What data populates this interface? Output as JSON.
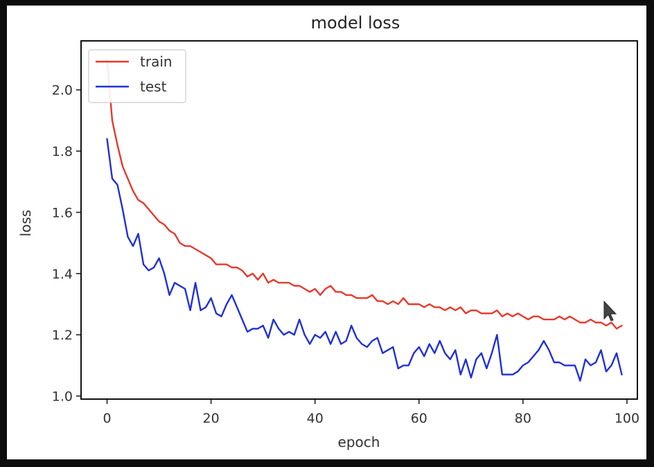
{
  "chart_data": {
    "type": "line",
    "title": "model loss",
    "xlabel": "epoch",
    "ylabel": "loss",
    "xlim": [
      -5,
      102
    ],
    "ylim": [
      0.99,
      2.16
    ],
    "xticks": [
      0,
      20,
      40,
      60,
      80,
      100
    ],
    "xtick_labels": [
      "0",
      "20",
      "40",
      "60",
      "80",
      "100"
    ],
    "yticks": [
      1.0,
      1.2,
      1.4,
      1.6,
      1.8,
      2.0
    ],
    "ytick_labels": [
      "1.0",
      "1.2",
      "1.4",
      "1.6",
      "1.8",
      "2.0"
    ],
    "grid": false,
    "legend": "top-left",
    "series": [
      {
        "name": "train",
        "color": "#e8382b",
        "x": [
          0,
          1,
          2,
          3,
          4,
          5,
          6,
          7,
          8,
          9,
          10,
          11,
          12,
          13,
          14,
          15,
          16,
          17,
          18,
          19,
          20,
          21,
          22,
          23,
          24,
          25,
          26,
          27,
          28,
          29,
          30,
          31,
          32,
          33,
          34,
          35,
          36,
          37,
          38,
          39,
          40,
          41,
          42,
          43,
          44,
          45,
          46,
          47,
          48,
          49,
          50,
          51,
          52,
          53,
          54,
          55,
          56,
          57,
          58,
          59,
          60,
          61,
          62,
          63,
          64,
          65,
          66,
          67,
          68,
          69,
          70,
          71,
          72,
          73,
          74,
          75,
          76,
          77,
          78,
          79,
          80,
          81,
          82,
          83,
          84,
          85,
          86,
          87,
          88,
          89,
          90,
          91,
          92,
          93,
          94,
          95,
          96,
          97,
          98,
          99
        ],
        "y": [
          2.1,
          1.9,
          1.82,
          1.75,
          1.71,
          1.67,
          1.64,
          1.63,
          1.61,
          1.59,
          1.57,
          1.56,
          1.54,
          1.53,
          1.5,
          1.49,
          1.49,
          1.48,
          1.47,
          1.46,
          1.45,
          1.43,
          1.43,
          1.43,
          1.42,
          1.42,
          1.41,
          1.39,
          1.4,
          1.38,
          1.4,
          1.37,
          1.38,
          1.37,
          1.37,
          1.37,
          1.36,
          1.36,
          1.35,
          1.34,
          1.35,
          1.33,
          1.35,
          1.36,
          1.34,
          1.34,
          1.33,
          1.33,
          1.32,
          1.32,
          1.32,
          1.33,
          1.31,
          1.31,
          1.3,
          1.31,
          1.3,
          1.32,
          1.3,
          1.3,
          1.3,
          1.29,
          1.3,
          1.29,
          1.29,
          1.28,
          1.29,
          1.28,
          1.29,
          1.27,
          1.28,
          1.28,
          1.27,
          1.27,
          1.27,
          1.28,
          1.26,
          1.27,
          1.26,
          1.27,
          1.26,
          1.25,
          1.26,
          1.26,
          1.25,
          1.25,
          1.25,
          1.26,
          1.25,
          1.26,
          1.25,
          1.24,
          1.24,
          1.25,
          1.24,
          1.24,
          1.23,
          1.24,
          1.22,
          1.23
        ]
      },
      {
        "name": "test",
        "color": "#1f2fd8",
        "x": [
          0,
          1,
          2,
          3,
          4,
          5,
          6,
          7,
          8,
          9,
          10,
          11,
          12,
          13,
          14,
          15,
          16,
          17,
          18,
          19,
          20,
          21,
          22,
          23,
          24,
          25,
          26,
          27,
          28,
          29,
          30,
          31,
          32,
          33,
          34,
          35,
          36,
          37,
          38,
          39,
          40,
          41,
          42,
          43,
          44,
          45,
          46,
          47,
          48,
          49,
          50,
          51,
          52,
          53,
          54,
          55,
          56,
          57,
          58,
          59,
          60,
          61,
          62,
          63,
          64,
          65,
          66,
          67,
          68,
          69,
          70,
          71,
          72,
          73,
          74,
          75,
          76,
          77,
          78,
          79,
          80,
          81,
          82,
          83,
          84,
          85,
          86,
          87,
          88,
          89,
          90,
          91,
          92,
          93,
          94,
          95,
          96,
          97,
          98,
          99
        ],
        "y": [
          1.84,
          1.71,
          1.69,
          1.61,
          1.52,
          1.49,
          1.53,
          1.43,
          1.41,
          1.42,
          1.45,
          1.4,
          1.33,
          1.37,
          1.36,
          1.35,
          1.28,
          1.37,
          1.28,
          1.29,
          1.32,
          1.27,
          1.26,
          1.3,
          1.33,
          1.29,
          1.25,
          1.21,
          1.22,
          1.22,
          1.23,
          1.19,
          1.25,
          1.22,
          1.2,
          1.21,
          1.2,
          1.25,
          1.2,
          1.17,
          1.2,
          1.19,
          1.21,
          1.17,
          1.21,
          1.17,
          1.18,
          1.23,
          1.19,
          1.17,
          1.16,
          1.18,
          1.19,
          1.14,
          1.15,
          1.16,
          1.09,
          1.1,
          1.1,
          1.14,
          1.16,
          1.13,
          1.17,
          1.14,
          1.18,
          1.14,
          1.12,
          1.15,
          1.07,
          1.12,
          1.06,
          1.12,
          1.14,
          1.09,
          1.14,
          1.2,
          1.07,
          1.07,
          1.07,
          1.08,
          1.1,
          1.11,
          1.13,
          1.15,
          1.18,
          1.15,
          1.11,
          1.11,
          1.1,
          1.1,
          1.1,
          1.05,
          1.12,
          1.1,
          1.11,
          1.15,
          1.08,
          1.1,
          1.14,
          1.07
        ]
      }
    ]
  }
}
